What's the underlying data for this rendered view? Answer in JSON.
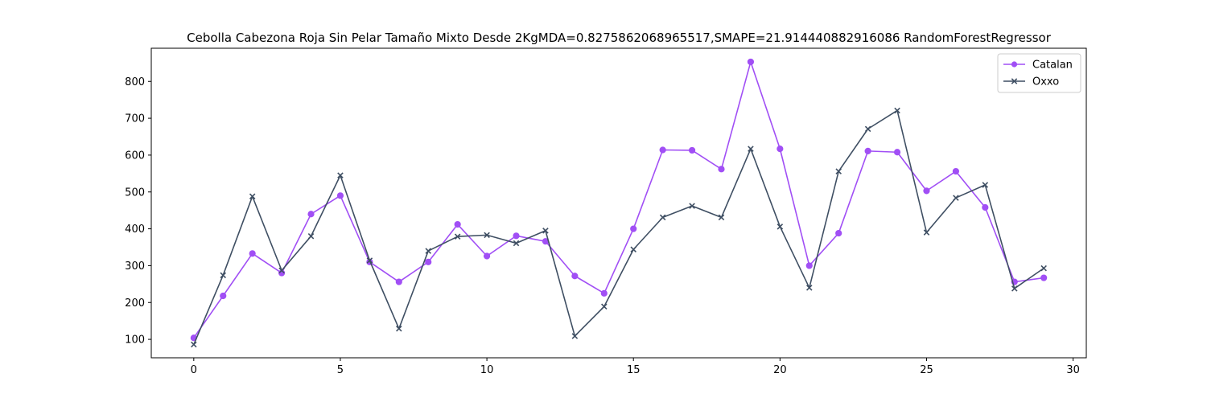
{
  "chart_data": {
    "type": "line",
    "title": "Cebolla Cabezona Roja Sin Pelar Tamaño Mixto Desde 2KgMDA=0.8275862068965517,SMAPE=21.914440882916086 RandomForestRegressor",
    "xlabel": "",
    "ylabel": "",
    "xlim": [
      -1.45,
      30.45
    ],
    "ylim": [
      50,
      890
    ],
    "xticks": [
      0,
      5,
      10,
      15,
      20,
      25,
      30
    ],
    "yticks": [
      100,
      200,
      300,
      400,
      500,
      600,
      700,
      800
    ],
    "grid": false,
    "legend_position": "top-right",
    "x": [
      0,
      1,
      2,
      3,
      4,
      5,
      6,
      7,
      8,
      9,
      10,
      11,
      12,
      13,
      14,
      15,
      16,
      17,
      18,
      19,
      20,
      21,
      22,
      23,
      24,
      25,
      26,
      27,
      28,
      29
    ],
    "series": [
      {
        "name": "Catalan",
        "color": "#a14ff5",
        "marker": "circle",
        "values": [
          104,
          218,
          333,
          280,
          440,
          490,
          310,
          256,
          310,
          412,
          326,
          381,
          366,
          272,
          225,
          400,
          614,
          613,
          562,
          853,
          617,
          300,
          388,
          611,
          608,
          503,
          556,
          458,
          256,
          267
        ]
      },
      {
        "name": "Oxxo",
        "color": "#3f4f63",
        "marker": "x",
        "values": [
          86,
          274,
          488,
          287,
          380,
          545,
          314,
          129,
          340,
          379,
          383,
          361,
          395,
          109,
          189,
          344,
          431,
          462,
          431,
          617,
          406,
          240,
          556,
          671,
          721,
          390,
          484,
          519,
          238,
          293
        ]
      }
    ]
  }
}
